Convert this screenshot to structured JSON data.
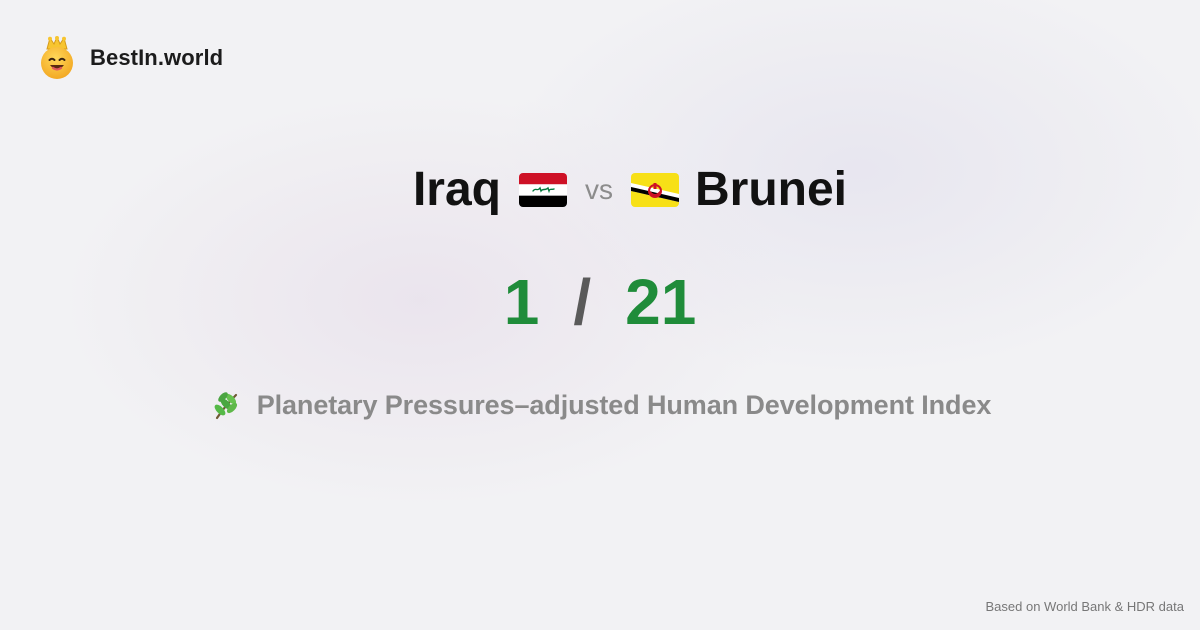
{
  "brand": {
    "name": "BestIn.world",
    "logo_icon": "crown-smiley-icon"
  },
  "comparison": {
    "left_country": "Iraq",
    "left_flag_icon": "iraq-flag-icon",
    "vs_label": "vs",
    "right_country": "Brunei",
    "right_flag_icon": "brunei-flag-icon"
  },
  "score": {
    "left_rank": "1",
    "separator": "/",
    "right_rank": "21",
    "color": "#1f8c3a"
  },
  "metric": {
    "icon": "herb-icon",
    "label": "Planetary Pressures–adjusted Human Development Index"
  },
  "footer": {
    "source_text": "Based on World Bank & HDR data"
  }
}
